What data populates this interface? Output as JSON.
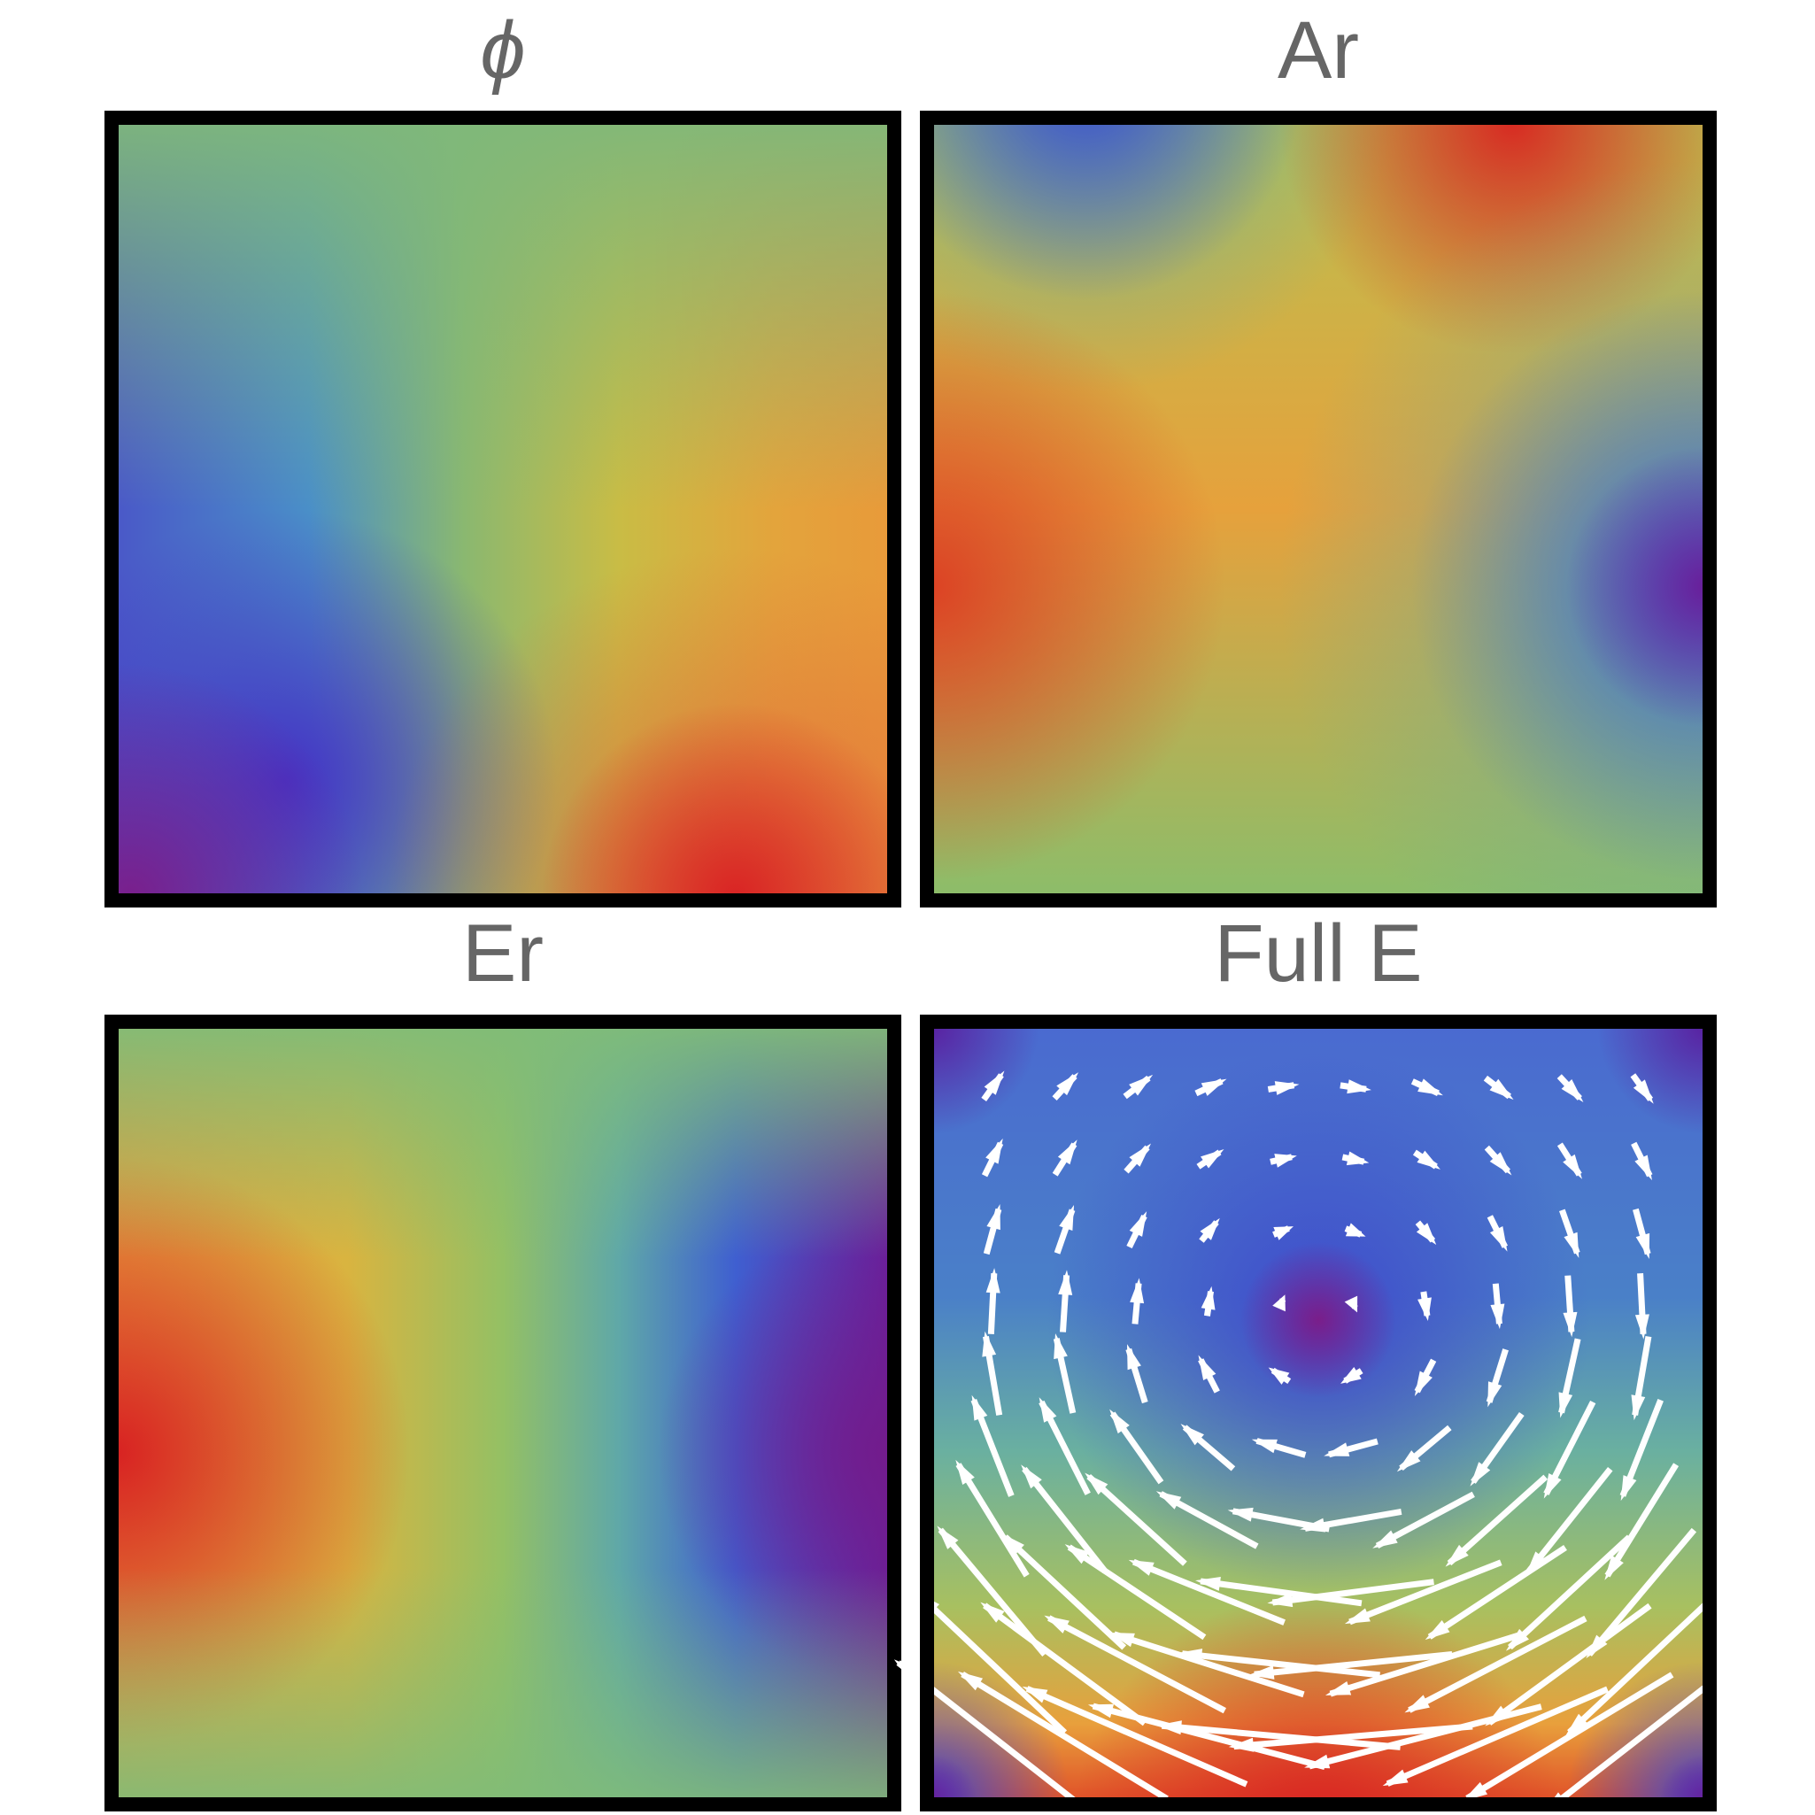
{
  "panels": [
    {
      "title": "ϕ"
    },
    {
      "title": "Ar"
    },
    {
      "title": "Er"
    },
    {
      "title": "Full E"
    }
  ]
}
